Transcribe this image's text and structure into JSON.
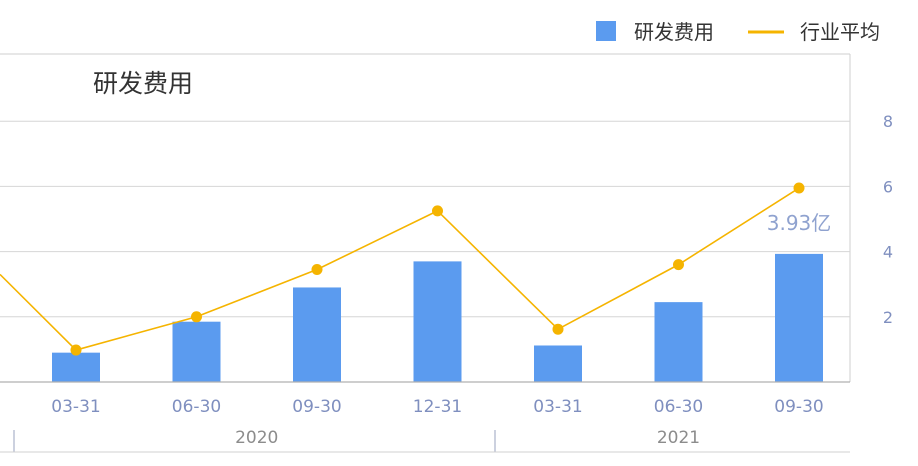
{
  "legend": [
    {
      "label": "研发费用",
      "kind": "bar",
      "color": "#5b9bef"
    },
    {
      "label": "行业平均",
      "kind": "line",
      "color": "#f5b400"
    }
  ],
  "chart_data": {
    "type": "bar",
    "title": "研发费用",
    "categories": [
      "03-31",
      "06-30",
      "09-30",
      "12-31",
      "03-31",
      "06-30",
      "09-30"
    ],
    "groups": [
      {
        "label": "2020",
        "categories": [
          0,
          1,
          2,
          3
        ]
      },
      {
        "label": "2021",
        "categories": [
          4,
          5,
          6
        ]
      }
    ],
    "series": [
      {
        "name": "研发费用",
        "type": "bar",
        "color": "#5b9bef",
        "values": [
          0.9,
          1.85,
          2.9,
          3.7,
          1.12,
          2.45,
          3.93
        ]
      },
      {
        "name": "行业平均",
        "type": "line",
        "color": "#f5b400",
        "values": [
          0.98,
          2.0,
          3.45,
          5.25,
          1.62,
          3.6,
          5.95
        ],
        "leading_value": 3.3
      }
    ],
    "data_label": {
      "series": 0,
      "index": 6,
      "text": "3.93亿"
    },
    "y_ticks": [
      "2",
      "4",
      "6",
      "8"
    ],
    "ylim": [
      0,
      8
    ],
    "grid": true,
    "legend_position": "top-right",
    "y_axis_side": "right"
  }
}
